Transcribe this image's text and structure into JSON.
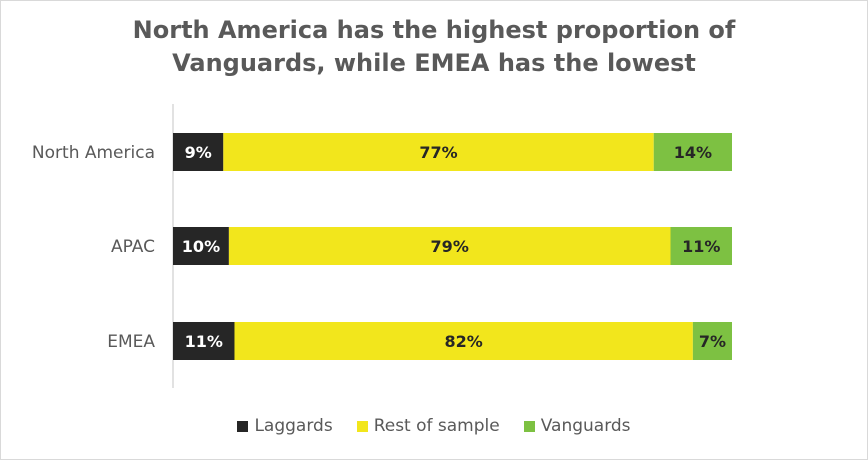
{
  "chart_data": {
    "type": "bar",
    "orientation": "horizontal",
    "stacked": true,
    "title_lines": [
      "North America has the highest proportion of",
      "Vanguards, while EMEA has the lowest"
    ],
    "categories": [
      "North America",
      "APAC",
      "EMEA"
    ],
    "series": [
      {
        "name": "Laggards",
        "color": "#262626",
        "values": [
          9,
          10,
          11
        ],
        "labels": [
          "9%",
          "10%",
          "11%"
        ]
      },
      {
        "name": "Rest of sample",
        "color": "#f2e61c",
        "values": [
          77,
          79,
          82
        ],
        "labels": [
          "77%",
          "79%",
          "82%"
        ]
      },
      {
        "name": "Vanguards",
        "color": "#7dc142",
        "values": [
          14,
          11,
          7
        ],
        "labels": [
          "14%",
          "11%",
          "7%"
        ]
      }
    ],
    "xlim": [
      0,
      100
    ],
    "grid": false,
    "legend_position": "bottom"
  }
}
